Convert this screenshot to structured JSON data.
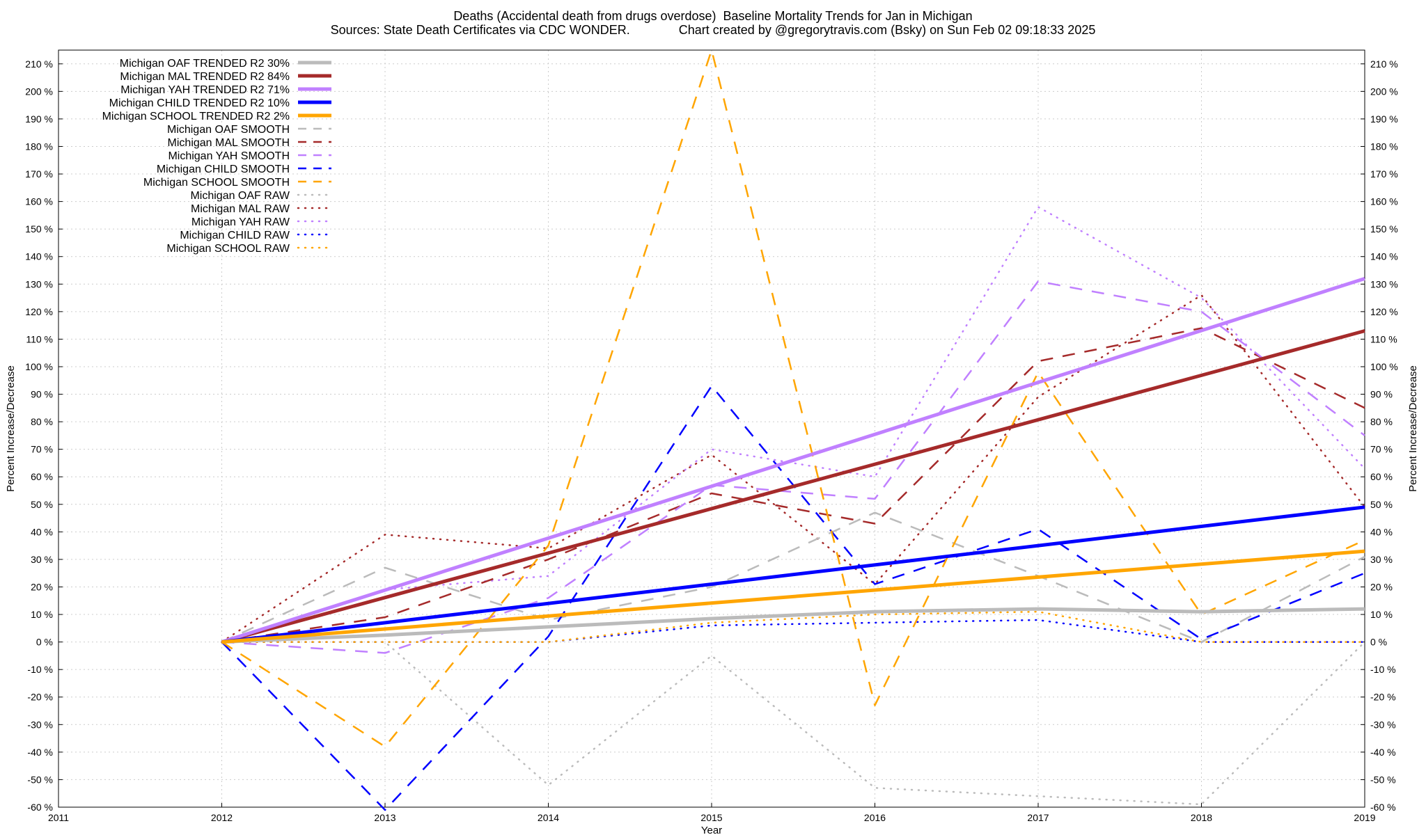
{
  "chart_data": {
    "type": "line",
    "title": "Deaths (Accidental death from drugs overdose)  Baseline Mortality Trends for Jan in Michigan",
    "subtitle": "Sources: State Death Certificates via CDC WONDER.              Chart created by @gregorytravis.com (Bsky) on Sun Feb 02 09:18:33 2025",
    "xlabel": "Year",
    "ylabel": "Percent Increase/Decrease",
    "y2label": "Percent Increase/Decrease",
    "xlim": [
      2011,
      2019
    ],
    "ylim": [
      -60,
      215
    ],
    "xticks": [
      "2011",
      "2012",
      "2013",
      "2014",
      "2015",
      "2016",
      "2017",
      "2018",
      "2019"
    ],
    "yticks": [
      "210 %",
      "200 %",
      "190 %",
      "180 %",
      "170 %",
      "160 %",
      "150 %",
      "140 %",
      "130 %",
      "120 %",
      "110 %",
      "100 %",
      "90 %",
      "80 %",
      "70 %",
      "60 %",
      "50 %",
      "40 %",
      "30 %",
      "20 %",
      "10 %",
      "0 %",
      "-10 %",
      "-20 %",
      "-30 %",
      "-40 %",
      "-50 %",
      "-60 %"
    ],
    "grid": true,
    "legend_position": "top-left",
    "series": [
      {
        "name": "Michigan OAF TRENDED R2  30%",
        "style": "solid",
        "color": "#bbbbbb",
        "x": [
          2012,
          2013,
          2014,
          2015,
          2016,
          2017,
          2018,
          2019
        ],
        "y": [
          0,
          2.5,
          5.5,
          8.5,
          11,
          12,
          11,
          12
        ]
      },
      {
        "name": "Michigan MAL TRENDED R2  84%",
        "style": "solid",
        "color": "#a52a2a",
        "x": [
          2012,
          2019
        ],
        "y": [
          0,
          113
        ]
      },
      {
        "name": "Michigan YAH TRENDED R2  71%",
        "style": "solid",
        "color": "#c080ff",
        "x": [
          2012,
          2019
        ],
        "y": [
          0,
          132
        ]
      },
      {
        "name": "Michigan CHILD TRENDED R2  10%",
        "style": "solid",
        "color": "#0000ff",
        "x": [
          2012,
          2019
        ],
        "y": [
          0,
          49
        ]
      },
      {
        "name": "Michigan SCHOOL TRENDED R2   2%",
        "style": "solid",
        "color": "#ffa500",
        "x": [
          2012,
          2019
        ],
        "y": [
          0,
          33
        ]
      },
      {
        "name": "Michigan OAF SMOOTH",
        "style": "dashed",
        "color": "#bbbbbb",
        "x": [
          2012,
          2013,
          2014,
          2015,
          2016,
          2017,
          2018,
          2019
        ],
        "y": [
          0,
          27,
          8,
          20,
          47,
          24,
          0,
          31
        ]
      },
      {
        "name": "Michigan MAL SMOOTH",
        "style": "dashed",
        "color": "#a52a2a",
        "x": [
          2012,
          2013,
          2014,
          2015,
          2016,
          2017,
          2018,
          2019
        ],
        "y": [
          0,
          9,
          30,
          54,
          43,
          102,
          114,
          85
        ]
      },
      {
        "name": "Michigan YAH SMOOTH",
        "style": "dashed",
        "color": "#c080ff",
        "x": [
          2012,
          2013,
          2014,
          2015,
          2016,
          2017,
          2018,
          2019
        ],
        "y": [
          0,
          -4,
          16,
          57,
          52,
          131,
          120,
          75
        ]
      },
      {
        "name": "Michigan CHILD SMOOTH",
        "style": "dashed",
        "color": "#0000ff",
        "x": [
          2012,
          2013,
          2014,
          2015,
          2016,
          2017,
          2018,
          2019
        ],
        "y": [
          0,
          -61,
          2,
          93,
          21,
          41,
          1,
          25
        ]
      },
      {
        "name": "Michigan SCHOOL SMOOTH",
        "style": "dashed",
        "color": "#ffa500",
        "x": [
          2012,
          2013,
          2014,
          2015,
          2016,
          2017,
          2018,
          2019
        ],
        "y": [
          0,
          -38,
          35,
          215,
          -23,
          98,
          10,
          37
        ]
      },
      {
        "name": "Michigan OAF RAW",
        "style": "dotted",
        "color": "#bbbbbb",
        "x": [
          2012,
          2013,
          2014,
          2015,
          2016,
          2017,
          2018,
          2019
        ],
        "y": [
          0,
          0,
          -52,
          -5,
          -53,
          -56,
          -59,
          0
        ]
      },
      {
        "name": "Michigan MAL RAW",
        "style": "dotted",
        "color": "#a52a2a",
        "x": [
          2012,
          2013,
          2014,
          2015,
          2016,
          2017,
          2018,
          2019
        ],
        "y": [
          0,
          39,
          34,
          68,
          21,
          89,
          126,
          49
        ]
      },
      {
        "name": "Michigan YAH RAW",
        "style": "dotted",
        "color": "#c080ff",
        "x": [
          2012,
          2013,
          2014,
          2015,
          2016,
          2017,
          2018,
          2019
        ],
        "y": [
          0,
          19,
          24,
          70,
          60,
          158,
          125,
          63
        ]
      },
      {
        "name": "Michigan CHILD RAW",
        "style": "dotted",
        "color": "#0000ff",
        "x": [
          2012,
          2013,
          2014,
          2015,
          2016,
          2017,
          2018,
          2019
        ],
        "y": [
          0,
          0,
          0,
          6,
          7,
          8,
          0,
          0
        ]
      },
      {
        "name": "Michigan SCHOOL RAW",
        "style": "dotted",
        "color": "#ffa500",
        "x": [
          2012,
          2013,
          2014,
          2015,
          2016,
          2017,
          2018,
          2019
        ],
        "y": [
          0,
          0,
          0,
          7,
          10,
          11,
          0,
          0
        ]
      }
    ]
  }
}
